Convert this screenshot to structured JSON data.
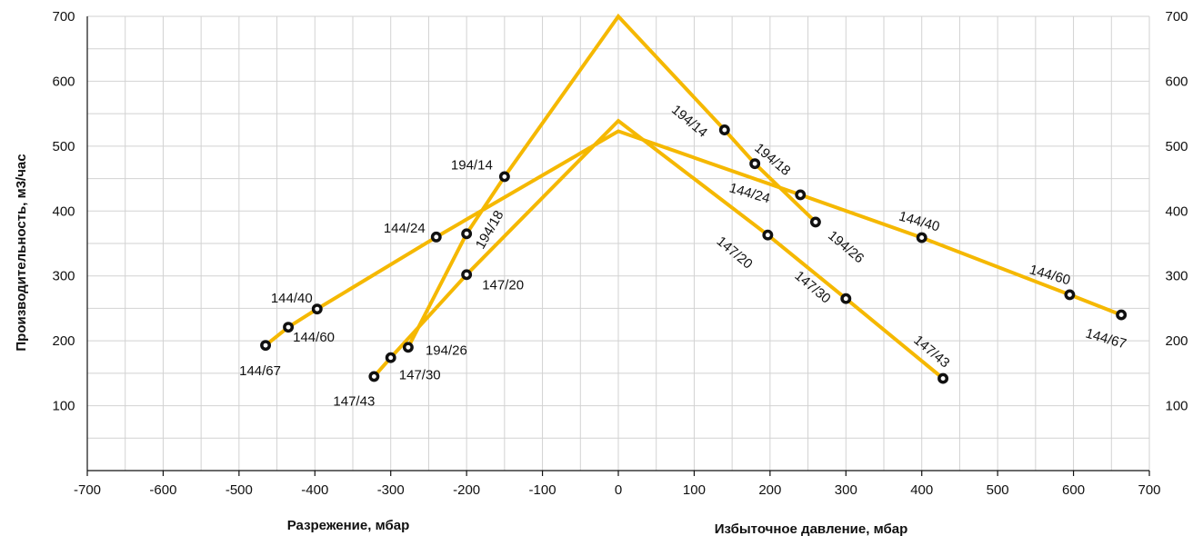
{
  "chart_data": {
    "type": "line",
    "title": "",
    "xlabel_left": "Разрежение, мбар",
    "xlabel_right": "Избыточное давление, мбар",
    "ylabel": "Производительность, м3/час",
    "xlim": [
      -700,
      700
    ],
    "ylim": [
      0,
      700
    ],
    "x_ticks": [
      -700,
      -600,
      -500,
      -400,
      -300,
      -200,
      -100,
      0,
      100,
      200,
      300,
      400,
      500,
      600,
      700
    ],
    "y_ticks": [
      100,
      200,
      300,
      400,
      500,
      600,
      700
    ],
    "grid": true,
    "line_color": "#f5b800",
    "marker_color": "#111111",
    "series": [
      {
        "values": [
          {
            "x": -465,
            "y": 193,
            "label": "144/67"
          },
          {
            "x": -435,
            "y": 221,
            "label": ""
          },
          {
            "x": -397,
            "y": 249,
            "label": "144/40"
          },
          {
            "x": -240,
            "y": 360,
            "label": "144/24"
          },
          {
            "x": 0,
            "y": 523,
            "label": ""
          },
          {
            "x": 240,
            "y": 425,
            "label": "144/24"
          },
          {
            "x": 400,
            "y": 359,
            "label": "144/40"
          },
          {
            "x": 595,
            "y": 271,
            "label": "144/60"
          },
          {
            "x": 663,
            "y": 240,
            "label": "144/67"
          }
        ]
      },
      {
        "values": [
          {
            "x": -322,
            "y": 145,
            "label": "147/43"
          },
          {
            "x": -300,
            "y": 174,
            "label": "147/30"
          },
          {
            "x": -200,
            "y": 302,
            "label": "147/20"
          },
          {
            "x": 0,
            "y": 539,
            "label": ""
          },
          {
            "x": 197,
            "y": 363,
            "label": "147/20"
          },
          {
            "x": 300,
            "y": 265,
            "label": "147/30"
          },
          {
            "x": 428,
            "y": 142,
            "label": "147/43"
          }
        ]
      },
      {
        "values": [
          {
            "x": -277,
            "y": 190,
            "label": "194/26"
          },
          {
            "x": -200,
            "y": 365,
            "label": "194/18"
          },
          {
            "x": -150,
            "y": 453,
            "label": "194/14"
          },
          {
            "x": 0,
            "y": 700,
            "label": ""
          },
          {
            "x": 140,
            "y": 525,
            "label": "194/14"
          },
          {
            "x": 180,
            "y": 473,
            "label": "194/18"
          },
          {
            "x": 260,
            "y": 383,
            "label": "194/26"
          }
        ]
      }
    ],
    "extra_point_labels": [
      "144/60"
    ]
  }
}
